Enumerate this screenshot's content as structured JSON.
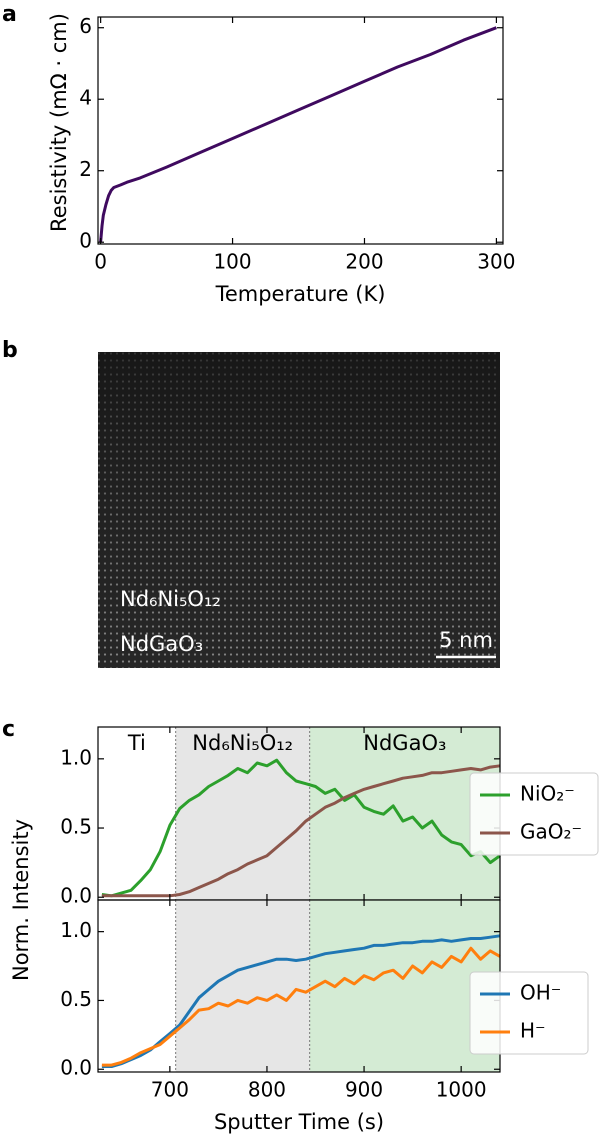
{
  "chart_data": [
    {
      "type": "line",
      "label": "a",
      "xlabel": "Temperature (K)",
      "ylabel": "Resistivity (mΩ · cm)",
      "xlim": [
        -2,
        305
      ],
      "ylim": [
        -0.05,
        6.3
      ],
      "xticks": [
        0,
        100,
        200,
        300
      ],
      "yticks": [
        0,
        2,
        4,
        6
      ],
      "x": [
        0,
        1,
        2,
        4,
        6,
        8,
        10,
        15,
        20,
        30,
        40,
        50,
        75,
        100,
        125,
        150,
        175,
        200,
        225,
        250,
        275,
        300
      ],
      "series": [
        {
          "name": null,
          "color": "#3f0a5f",
          "values": [
            0.0,
            0.45,
            0.75,
            1.05,
            1.3,
            1.45,
            1.53,
            1.6,
            1.68,
            1.8,
            1.95,
            2.1,
            2.5,
            2.9,
            3.3,
            3.7,
            4.1,
            4.5,
            4.9,
            5.25,
            5.65,
            6.0
          ]
        }
      ]
    },
    {
      "type": "line",
      "label": "c",
      "ylabel": "Norm. Intensity",
      "xlim": [
        626,
        1040
      ],
      "ylim": [
        -0.02,
        1.23
      ],
      "yticks": [
        {
          "value": 0,
          "label": "0.0"
        },
        0.5,
        {
          "value": 1,
          "label": "1.0"
        }
      ],
      "regions": [
        {
          "label": "Ti",
          "range": [
            626,
            706
          ]
        },
        {
          "label": "Nd₆Ni₅O₁₂",
          "range": [
            706,
            844
          ],
          "color": "#e6e6e6"
        },
        {
          "label": "NdGaO₃",
          "range": [
            844,
            1040
          ],
          "color": "#d4ebd4"
        }
      ],
      "x": [
        630,
        640,
        650,
        660,
        670,
        680,
        690,
        700,
        710,
        720,
        730,
        740,
        750,
        760,
        770,
        780,
        790,
        800,
        810,
        820,
        830,
        840,
        850,
        860,
        870,
        880,
        890,
        900,
        910,
        920,
        930,
        940,
        950,
        960,
        970,
        980,
        990,
        1000,
        1010,
        1020,
        1030,
        1040
      ],
      "series": [
        {
          "name": "NiO₂⁻",
          "color": "#2ca02c",
          "values": [
            0.02,
            0.01,
            0.03,
            0.05,
            0.12,
            0.2,
            0.33,
            0.52,
            0.64,
            0.7,
            0.74,
            0.8,
            0.84,
            0.88,
            0.93,
            0.9,
            0.97,
            0.95,
            0.99,
            0.9,
            0.84,
            0.82,
            0.8,
            0.75,
            0.78,
            0.7,
            0.74,
            0.65,
            0.62,
            0.6,
            0.66,
            0.55,
            0.58,
            0.5,
            0.55,
            0.45,
            0.4,
            0.38,
            0.3,
            0.33,
            0.25,
            0.3
          ]
        },
        {
          "name": "GaO₂⁻",
          "color": "#8c564b",
          "values": [
            0.01,
            0.01,
            0.01,
            0.01,
            0.01,
            0.01,
            0.01,
            0.01,
            0.02,
            0.04,
            0.07,
            0.1,
            0.13,
            0.17,
            0.2,
            0.24,
            0.27,
            0.3,
            0.36,
            0.42,
            0.48,
            0.55,
            0.6,
            0.65,
            0.68,
            0.72,
            0.75,
            0.78,
            0.8,
            0.82,
            0.84,
            0.86,
            0.87,
            0.88,
            0.9,
            0.9,
            0.91,
            0.92,
            0.93,
            0.92,
            0.94,
            0.95
          ]
        }
      ]
    },
    {
      "type": "line",
      "xlabel": "Sputter Time (s)",
      "xlim": [
        626,
        1040
      ],
      "ylim": [
        -0.02,
        1.23
      ],
      "xticks": [
        700,
        800,
        900,
        1000
      ],
      "yticks": [
        {
          "value": 0,
          "label": "0.0"
        },
        0.5,
        {
          "value": 1,
          "label": "1.0"
        }
      ],
      "regions": [
        {
          "range": [
            706,
            844
          ],
          "color": "#e6e6e6"
        },
        {
          "range": [
            844,
            1040
          ],
          "color": "#d4ebd4"
        }
      ],
      "x": [
        630,
        640,
        650,
        660,
        670,
        680,
        690,
        700,
        710,
        720,
        730,
        740,
        750,
        760,
        770,
        780,
        790,
        800,
        810,
        820,
        830,
        840,
        850,
        860,
        870,
        880,
        890,
        900,
        910,
        920,
        930,
        940,
        950,
        960,
        970,
        980,
        990,
        1000,
        1010,
        1020,
        1030,
        1040
      ],
      "series": [
        {
          "name": "OH⁻",
          "color": "#1f77b4",
          "values": [
            0.02,
            0.02,
            0.04,
            0.07,
            0.1,
            0.14,
            0.2,
            0.26,
            0.32,
            0.42,
            0.52,
            0.58,
            0.64,
            0.68,
            0.72,
            0.74,
            0.76,
            0.78,
            0.8,
            0.8,
            0.79,
            0.8,
            0.82,
            0.84,
            0.85,
            0.86,
            0.87,
            0.88,
            0.9,
            0.9,
            0.91,
            0.92,
            0.92,
            0.93,
            0.93,
            0.94,
            0.93,
            0.94,
            0.95,
            0.95,
            0.96,
            0.97
          ]
        },
        {
          "name": "H⁻",
          "color": "#ff7f0e",
          "values": [
            0.03,
            0.03,
            0.05,
            0.08,
            0.12,
            0.15,
            0.18,
            0.24,
            0.3,
            0.36,
            0.43,
            0.44,
            0.48,
            0.46,
            0.5,
            0.48,
            0.52,
            0.5,
            0.54,
            0.5,
            0.58,
            0.56,
            0.6,
            0.64,
            0.6,
            0.66,
            0.62,
            0.68,
            0.65,
            0.7,
            0.72,
            0.66,
            0.75,
            0.7,
            0.78,
            0.74,
            0.82,
            0.78,
            0.88,
            0.8,
            0.86,
            0.82
          ]
        }
      ]
    }
  ],
  "image": {
    "label": "b",
    "texts": [
      "Nd₆Ni₅O₁₂",
      "NdGaO₃"
    ],
    "scale_bar": "5 nm"
  }
}
